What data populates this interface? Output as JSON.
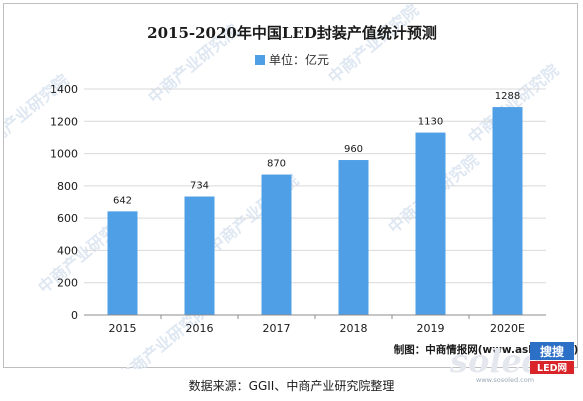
{
  "source_note": "数据来源：GGII、中商产业研究院整理",
  "credit": "制图：中商情报网(www.askci.com)",
  "watermark": "中商产业研究院",
  "logo": {
    "main": "soled",
    "sub": "搜搜",
    "badge": "LED网",
    "url": "www.sosoled.com"
  },
  "colors": {
    "bar": "#4f9fe6",
    "grid": "#d9d9d9",
    "axis": "#8c8c8c"
  },
  "chart_data": {
    "type": "bar",
    "title": "2015-2020年中国LED封装产值统计预测",
    "legend": "单位：亿元",
    "legend_position": "top-center",
    "categories": [
      "2015",
      "2016",
      "2017",
      "2018",
      "2019",
      "2020E"
    ],
    "values": [
      642,
      734,
      870,
      960,
      1130,
      1288
    ],
    "ylim": [
      0,
      1400
    ],
    "yticks": [
      "0",
      "200",
      "400",
      "600",
      "800",
      "1000",
      "1200",
      "1400"
    ],
    "grid": true
  }
}
